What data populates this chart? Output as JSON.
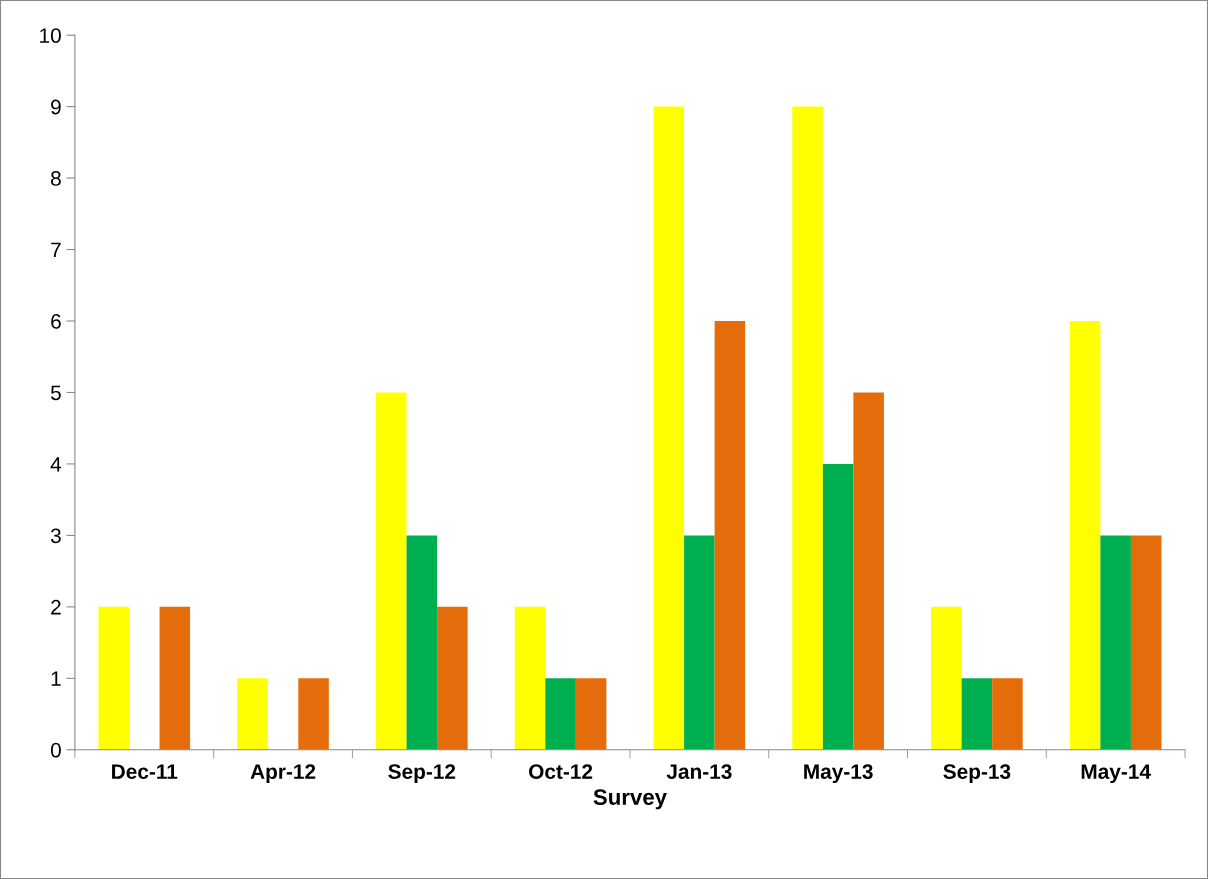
{
  "chart_data": {
    "type": "bar",
    "xlabel": "Survey",
    "categories": [
      "Dec-11",
      "Apr-12",
      "Sep-12",
      "Oct-12",
      "Jan-13",
      "May-13",
      "Sep-13",
      "May-14"
    ],
    "series": [
      {
        "color": "#ffff00",
        "values": [
          2,
          1,
          5,
          2,
          9,
          9,
          2,
          6
        ]
      },
      {
        "color": "#00b050",
        "values": [
          0,
          0,
          3,
          1,
          3,
          4,
          1,
          3
        ]
      },
      {
        "color": "#e46c0a",
        "values": [
          2,
          1,
          2,
          1,
          6,
          5,
          1,
          3
        ]
      }
    ],
    "ylim": [
      0,
      10
    ],
    "yticks": [
      0,
      1,
      2,
      3,
      4,
      5,
      6,
      7,
      8,
      9,
      10
    ],
    "grid": false,
    "legend": false
  }
}
